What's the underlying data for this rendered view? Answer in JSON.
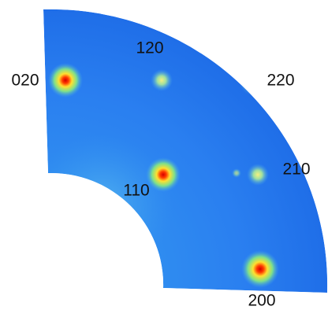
{
  "reflections": {
    "labels": [
      "120",
      "020",
      "220",
      "210",
      "110",
      "200"
    ]
  }
}
